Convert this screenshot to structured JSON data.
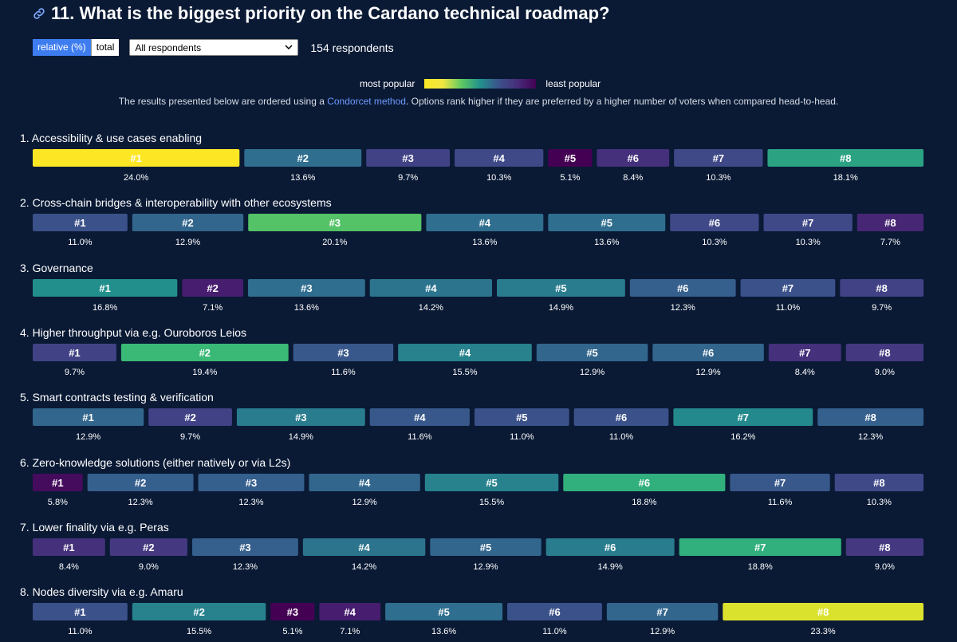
{
  "header": {
    "title": "11. What is the biggest priority on the Cardano technical roadmap?",
    "link_icon": "link-icon"
  },
  "controls": {
    "relative_label": "relative (%)",
    "total_label": "total",
    "respondent_filter": "All respondents",
    "respondents_text": "154 respondents"
  },
  "legend": {
    "most_popular": "most popular",
    "least_popular": "least popular"
  },
  "note": {
    "before": "The results presented below are ordered using a ",
    "link": "Condorcet method",
    "after": ". Options rank higher if they are preferred by a higher number of voters when compared head-to-head."
  },
  "chart_data": {
    "type": "bar",
    "orientation": "horizontal-stacked",
    "colormap": "viridis (most popular = yellow, least popular = purple)",
    "categories": [
      "#1",
      "#2",
      "#3",
      "#4",
      "#5",
      "#6",
      "#7",
      "#8"
    ],
    "series": [
      {
        "name": "1. Accessibility & use cases enabling",
        "values": [
          24.0,
          13.6,
          9.7,
          10.3,
          5.1,
          8.4,
          10.3,
          18.1
        ]
      },
      {
        "name": "2. Cross-chain bridges & interoperability with other ecosystems",
        "values": [
          11.0,
          12.9,
          20.1,
          13.6,
          13.6,
          10.3,
          10.3,
          7.7
        ]
      },
      {
        "name": "3. Governance",
        "values": [
          16.8,
          7.1,
          13.6,
          14.2,
          14.9,
          12.3,
          11.0,
          9.7
        ]
      },
      {
        "name": "4. Higher throughput via e.g. Ouroboros Leios",
        "values": [
          9.7,
          19.4,
          11.6,
          15.5,
          12.9,
          12.9,
          8.4,
          9.0
        ]
      },
      {
        "name": "5. Smart contracts testing & verification",
        "values": [
          12.9,
          9.7,
          14.9,
          11.6,
          11.0,
          11.0,
          16.2,
          12.3
        ]
      },
      {
        "name": "6. Zero-knowledge solutions (either natively or via L2s)",
        "values": [
          5.8,
          12.3,
          12.3,
          12.9,
          15.5,
          18.8,
          11.6,
          10.3
        ]
      },
      {
        "name": "7. Lower finality via e.g. Peras",
        "values": [
          8.4,
          9.0,
          12.3,
          14.2,
          12.9,
          14.9,
          18.8,
          9.0
        ]
      },
      {
        "name": "8. Nodes diversity via e.g. Amaru",
        "values": [
          11.0,
          15.5,
          5.1,
          7.1,
          13.6,
          11.0,
          12.9,
          23.3
        ]
      }
    ],
    "unit": "%"
  }
}
